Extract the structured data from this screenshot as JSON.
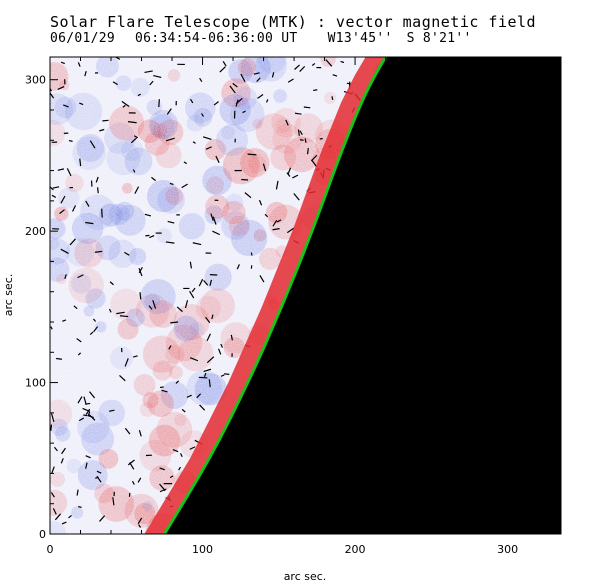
{
  "header": {
    "title": "Solar Flare Telescope (MTK) : vector magnetic field",
    "date": "06/01/29",
    "time_range": "06:34:54-06:36:00 UT",
    "position_ew": "W13'45''",
    "position_ns": "S 8'21''"
  },
  "chart_data": {
    "type": "heatmap",
    "title": "Solar Flare Telescope (MTK) : vector magnetic field",
    "xlabel": "arc sec.",
    "ylabel": "arc sec.",
    "xlim": [
      0,
      335
    ],
    "ylim": [
      0,
      315
    ],
    "x_ticks": [
      0,
      100,
      200,
      300
    ],
    "y_ticks": [
      0,
      100,
      200,
      300
    ],
    "x_tick_labels": [
      "0",
      "100",
      "200",
      "300"
    ],
    "y_tick_labels": [
      "0",
      "100",
      "200",
      "300"
    ],
    "limb_curve": {
      "x": [
        75,
        105,
        130,
        152,
        172,
        190,
        204,
        213,
        220
      ],
      "y": [
        0,
        50,
        100,
        150,
        200,
        250,
        285,
        303,
        315
      ]
    },
    "colors": {
      "positive_polarity": "#e43a3a",
      "negative_polarity": "#5c6fe0",
      "off_limb": "#000000",
      "limb_line": "#19c219",
      "vectors": "#000000"
    }
  }
}
